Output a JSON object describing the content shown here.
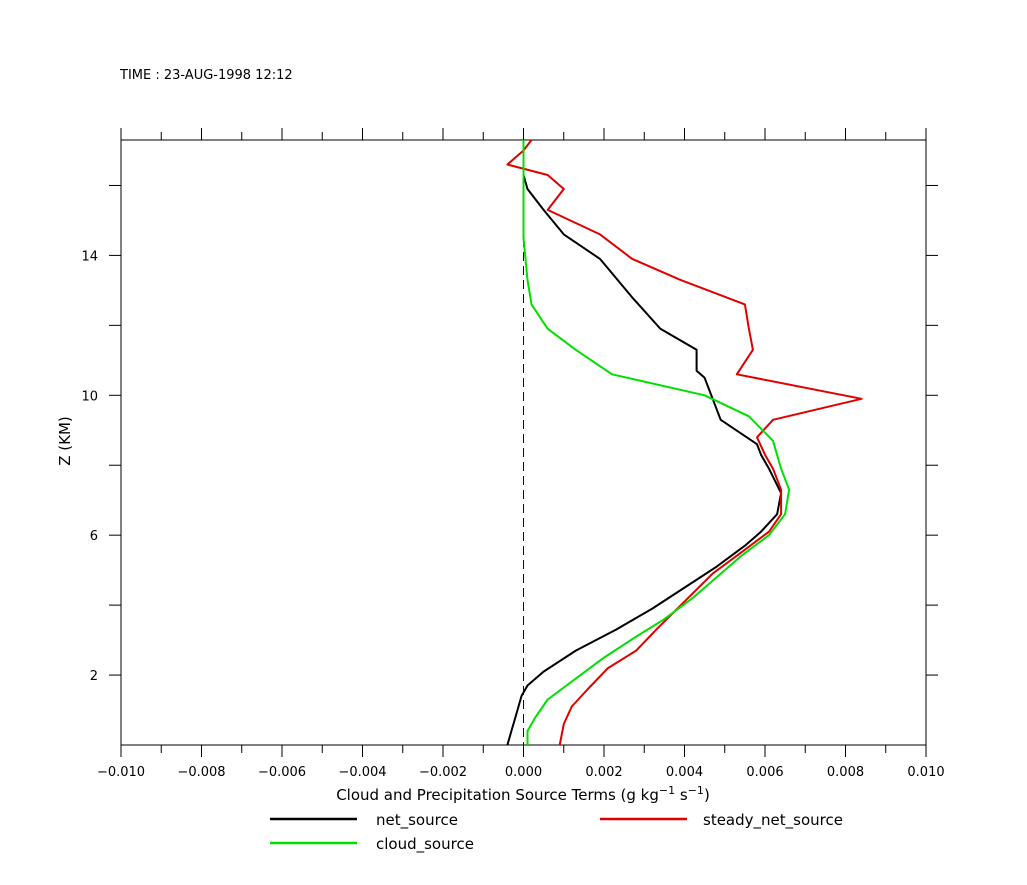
{
  "header": {
    "time_label": "TIME : 23-AUG-1998 12:12"
  },
  "chart_data": {
    "type": "line",
    "xlabel_main": "Cloud and Precipitation Source Terms (g kg",
    "xlabel_exp1": "−1",
    "xlabel_mid": " s",
    "xlabel_exp2": "−1",
    "xlabel_end": ")",
    "ylabel": "Z (KM)",
    "xlim": [
      -0.01,
      0.01
    ],
    "ylim": [
      0.0,
      17.3
    ],
    "x_ticks": [
      -0.01,
      -0.008,
      -0.006,
      -0.004,
      -0.002,
      0.0,
      0.002,
      0.004,
      0.006,
      0.008,
      0.01
    ],
    "x_tick_labels": [
      "−0.010",
      "−0.008",
      "−0.006",
      "−0.004",
      "−0.002",
      "0.000",
      "0.002",
      "0.004",
      "0.006",
      "0.008",
      "0.010"
    ],
    "y_ticks": [
      2,
      6,
      10,
      14
    ],
    "y_tick_labels": [
      "2",
      "6",
      "10",
      "14"
    ],
    "grid": false,
    "reference_line": {
      "x": 0.0,
      "style": "dashed",
      "color": "#000080"
    },
    "colors": {
      "net_source": "#000000",
      "steady_net_source": "#e00000",
      "cloud_source": "#00e000"
    },
    "legend_position": "bottom",
    "series": [
      {
        "name": "net_source",
        "points": [
          [
            -0.0004,
            0.0
          ],
          [
            -0.0003,
            0.4
          ],
          [
            -0.0002,
            0.8
          ],
          [
            -5e-05,
            1.4
          ],
          [
            0.0001,
            1.7
          ],
          [
            0.0005,
            2.1
          ],
          [
            0.0013,
            2.7
          ],
          [
            0.0023,
            3.3
          ],
          [
            0.0032,
            3.9
          ],
          [
            0.004,
            4.5
          ],
          [
            0.0048,
            5.1
          ],
          [
            0.0055,
            5.7
          ],
          [
            0.0059,
            6.1
          ],
          [
            0.0063,
            6.6
          ],
          [
            0.0064,
            7.2
          ],
          [
            0.0061,
            7.9
          ],
          [
            0.0059,
            8.3
          ],
          [
            0.0058,
            8.6
          ],
          [
            0.0049,
            9.3
          ],
          [
            0.0045,
            10.5
          ],
          [
            0.0043,
            10.7
          ],
          [
            0.0043,
            11.3
          ],
          [
            0.0034,
            11.9
          ],
          [
            0.0027,
            12.8
          ],
          [
            0.0019,
            13.9
          ],
          [
            0.001,
            14.6
          ],
          [
            0.0005,
            15.3
          ],
          [
            0.0001,
            15.9
          ],
          [
            0.0,
            16.3
          ],
          [
            0.0,
            17.3
          ]
        ]
      },
      {
        "name": "steady_net_source",
        "points": [
          [
            0.0009,
            0.0
          ],
          [
            0.001,
            0.6
          ],
          [
            0.0012,
            1.1
          ],
          [
            0.0016,
            1.6
          ],
          [
            0.0021,
            2.2
          ],
          [
            0.0028,
            2.7
          ],
          [
            0.0033,
            3.3
          ],
          [
            0.004,
            4.1
          ],
          [
            0.0047,
            4.9
          ],
          [
            0.0054,
            5.5
          ],
          [
            0.0061,
            6.1
          ],
          [
            0.0064,
            6.6
          ],
          [
            0.0064,
            7.3
          ],
          [
            0.0062,
            7.9
          ],
          [
            0.006,
            8.3
          ],
          [
            0.0058,
            8.8
          ],
          [
            0.0062,
            9.3
          ],
          [
            0.0084,
            9.9
          ],
          [
            0.0053,
            10.6
          ],
          [
            0.0057,
            11.3
          ],
          [
            0.0056,
            11.9
          ],
          [
            0.0055,
            12.6
          ],
          [
            0.0039,
            13.3
          ],
          [
            0.0027,
            13.9
          ],
          [
            0.0019,
            14.6
          ],
          [
            0.0006,
            15.3
          ],
          [
            0.001,
            15.9
          ],
          [
            0.0006,
            16.3
          ],
          [
            -0.0004,
            16.6
          ],
          [
            0.0,
            17.0
          ],
          [
            0.0002,
            17.3
          ]
        ]
      },
      {
        "name": "cloud_source",
        "points": [
          [
            0.0001,
            0.0
          ],
          [
            0.0001,
            0.4
          ],
          [
            0.0003,
            0.8
          ],
          [
            0.0006,
            1.3
          ],
          [
            0.0013,
            1.9
          ],
          [
            0.002,
            2.5
          ],
          [
            0.0028,
            3.1
          ],
          [
            0.0035,
            3.6
          ],
          [
            0.0042,
            4.2
          ],
          [
            0.0048,
            4.8
          ],
          [
            0.0054,
            5.4
          ],
          [
            0.0061,
            6.0
          ],
          [
            0.0065,
            6.6
          ],
          [
            0.0066,
            7.3
          ],
          [
            0.0064,
            7.9
          ],
          [
            0.0062,
            8.7
          ],
          [
            0.0056,
            9.4
          ],
          [
            0.0045,
            10.0
          ],
          [
            0.0022,
            10.6
          ],
          [
            0.0013,
            11.3
          ],
          [
            0.0006,
            11.9
          ],
          [
            0.0002,
            12.6
          ],
          [
            0.0001,
            13.3
          ],
          [
            0.0,
            14.5
          ],
          [
            0.0,
            15.5
          ],
          [
            0.0,
            16.5
          ],
          [
            0.0,
            17.3
          ]
        ]
      }
    ]
  }
}
